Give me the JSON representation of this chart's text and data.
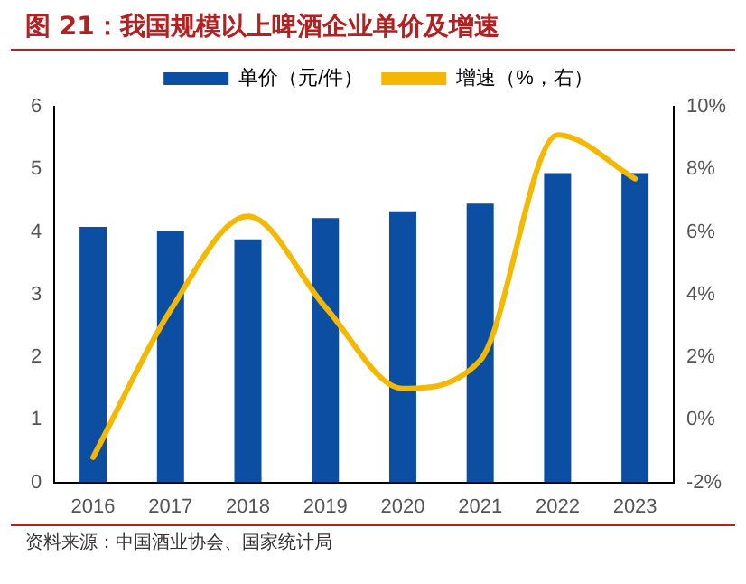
{
  "chart_data": {
    "type": "bar",
    "title": "图 21：我国规模以上啤酒企业单价及增速",
    "categories": [
      "2016",
      "2017",
      "2018",
      "2019",
      "2020",
      "2021",
      "2022",
      "2023"
    ],
    "series": [
      {
        "name": "单价（元/件）",
        "color": "#0b4ea2",
        "values": [
          4.08,
          4.02,
          3.88,
          4.22,
          4.33,
          4.45,
          4.94,
          4.94
        ]
      },
      {
        "name": "增速（%，右）",
        "type": "line",
        "axis": "y2",
        "color": "#f5b800",
        "values": [
          -1.2,
          3.5,
          6.5,
          3.6,
          1.0,
          1.9,
          9.1,
          7.7
        ]
      }
    ],
    "ylim": [
      0,
      6
    ],
    "yticks": [
      0,
      1,
      2,
      3,
      4,
      5,
      6
    ],
    "y2lim": [
      -2,
      10
    ],
    "y2ticks": [
      {
        "value": -2,
        "label": "-2%"
      },
      {
        "value": 0,
        "label": "0%"
      },
      {
        "value": 2,
        "label": "2%"
      },
      {
        "value": 4,
        "label": "4%"
      },
      {
        "value": 6,
        "label": "6%"
      },
      {
        "value": 8,
        "label": "8%"
      },
      {
        "value": 10,
        "label": "10%"
      }
    ],
    "legend": "top",
    "grid": false,
    "annotations": [
      "资料来源：中国酒业协会、国家统计局"
    ]
  }
}
